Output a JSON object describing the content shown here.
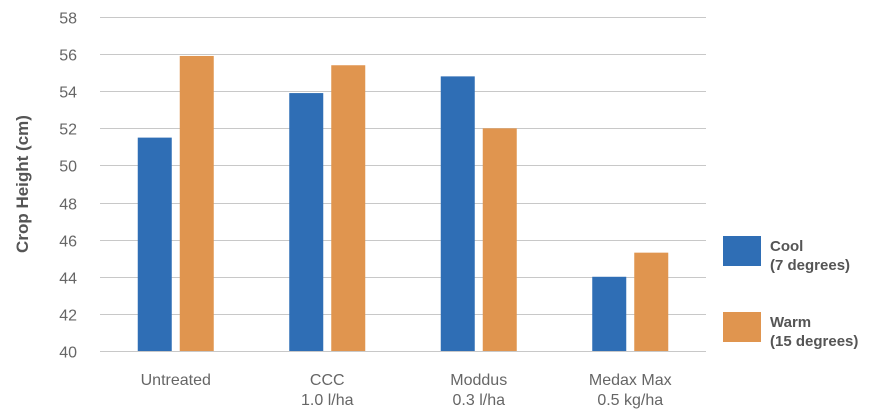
{
  "chart_data": {
    "type": "bar",
    "ylabel": "Crop Height (cm)",
    "xlabel": "",
    "ylim": [
      40,
      58
    ],
    "yticks": [
      40,
      42,
      44,
      46,
      48,
      50,
      52,
      54,
      56,
      58
    ],
    "grid": true,
    "legend_position": "right",
    "categories": [
      {
        "line1": "Untreated",
        "line2": ""
      },
      {
        "line1": "CCC",
        "line2": "1.0 l/ha"
      },
      {
        "line1": "Moddus",
        "line2": "0.3 l/ha"
      },
      {
        "line1": "Medax Max",
        "line2": "0.5 kg/ha"
      }
    ],
    "series": [
      {
        "name_line1": "Cool",
        "name_line2": "(7 degrees)",
        "color": "#2f6eb5",
        "values": [
          51.5,
          53.9,
          54.8,
          44.0
        ]
      },
      {
        "name_line1": "Warm",
        "name_line2": "(15 degrees)",
        "color": "#e0954f",
        "values": [
          55.9,
          55.4,
          52.0,
          45.3
        ]
      }
    ]
  }
}
